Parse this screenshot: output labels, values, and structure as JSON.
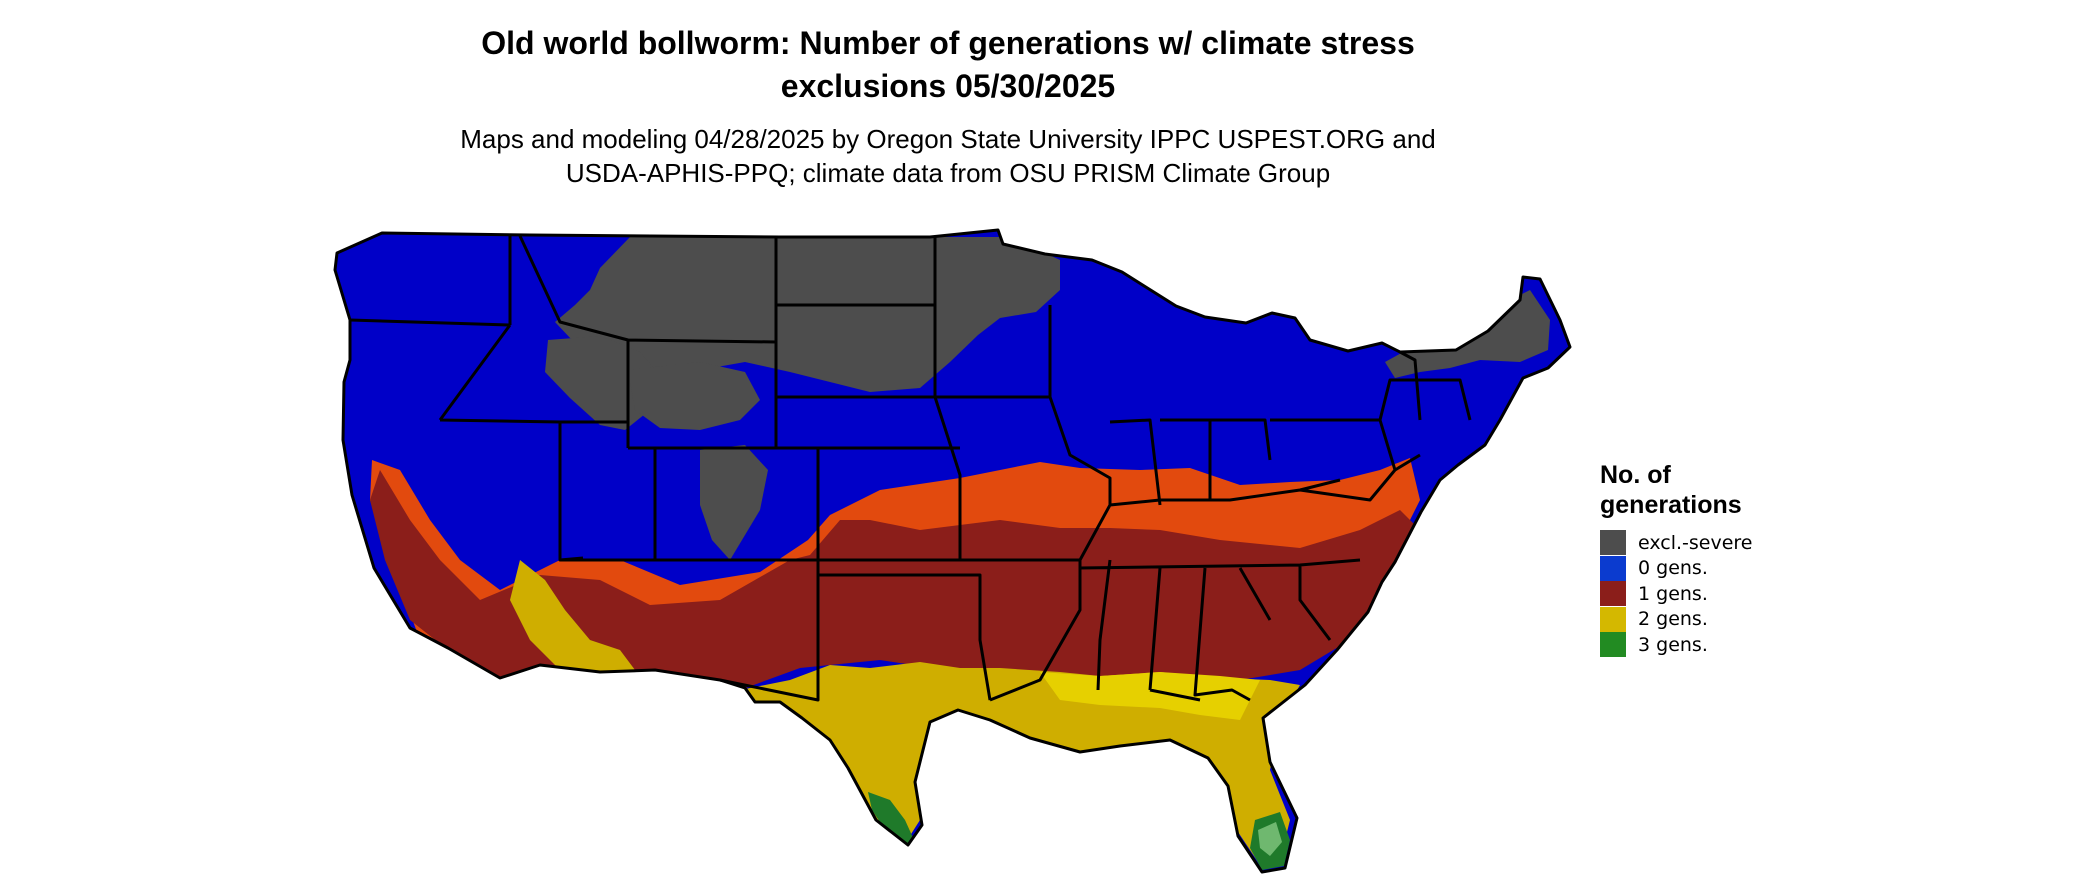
{
  "title": {
    "line1": "Old world bollworm: Number of generations w/ climate stress",
    "line2": "exclusions 05/30/2025"
  },
  "subtitle": {
    "line1": "Maps and modeling 04/28/2025 by Oregon State University IPPC USPEST.ORG and",
    "line2": "USDA-APHIS-PPQ; climate data from OSU PRISM Climate Group"
  },
  "legend": {
    "title_line1": "No. of",
    "title_line2": "generations",
    "items": [
      {
        "label": "excl.-severe",
        "color": "#4d4d4d"
      },
      {
        "label": "0 gens.",
        "color": "#0b3bcf"
      },
      {
        "label": "1 gens.",
        "color": "#8b1e1a"
      },
      {
        "label": "2 gens.",
        "color": "#d4b800"
      },
      {
        "label": "3 gens.",
        "color": "#228b22"
      }
    ]
  },
  "colors": {
    "excl": "#4d4d4d",
    "zero": "#0000c8",
    "orange": "#e24a0e",
    "one": "#8b1e1a",
    "two": "#cfae00",
    "two_light": "#e6d000",
    "three": "#1f7a2a",
    "three_light": "#6fb86f",
    "border": "#000000"
  }
}
